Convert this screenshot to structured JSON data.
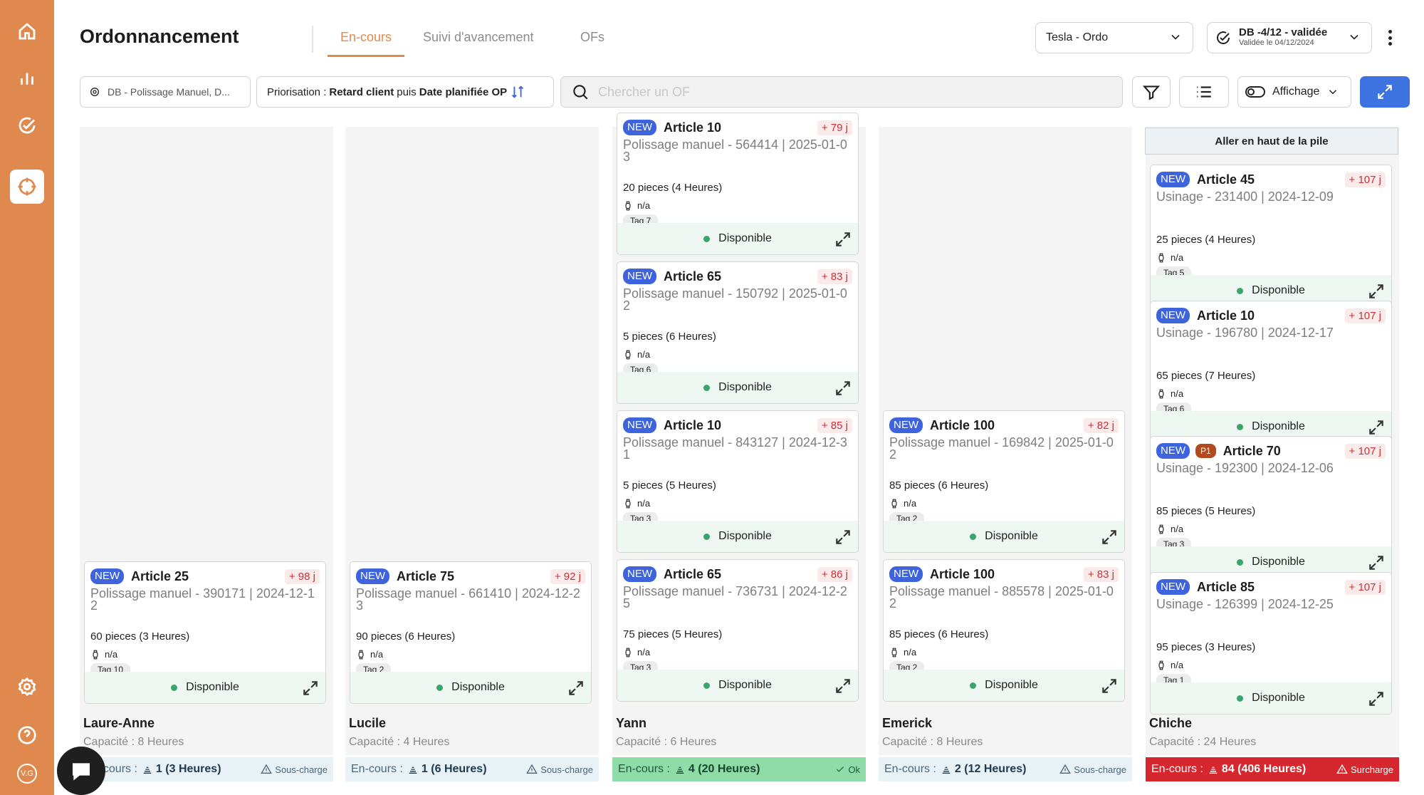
{
  "sidebar": {
    "avatar": "V.G"
  },
  "header": {
    "title": "Ordonnancement",
    "tabs": [
      "En-cours",
      "Suivi d'avancement",
      "OFs"
    ],
    "line_select": "Tesla - Ordo",
    "db_title": "DB -4/12 - validée",
    "db_subtitle": "Validée le 04/12/2024"
  },
  "toolbar": {
    "filter_chip": "DB - Polissage Manuel, D...",
    "prio_label": "Priorisation :",
    "prio_a": "Retard client",
    "prio_join": "puis",
    "prio_b": "Date planifiée OP",
    "search_placeholder": "Chercher un OF",
    "display_label": "Affichage"
  },
  "common": {
    "na": "n/a",
    "available": "Disponible",
    "encours": "En-cours :",
    "goto_top": "Aller en haut de la pile"
  },
  "columns": [
    {
      "name": "Laure-Anne",
      "capacity": "Capacité : 8 Heures",
      "count": "1 (3 Heures)",
      "status": "Sous-charge",
      "tone": "under",
      "cards": [
        {
          "new": "NEW",
          "p1": "",
          "article": "Article 25",
          "delay": "+ 98 j",
          "op": "Polissage manuel - 390171 | 2024-12-12",
          "pieces": "60 pieces (3 Heures)",
          "tag": "Tag 10"
        }
      ]
    },
    {
      "name": "Lucile",
      "capacity": "Capacité : 4 Heures",
      "count": "1 (6 Heures)",
      "status": "Sous-charge",
      "tone": "under",
      "cards": [
        {
          "new": "NEW",
          "p1": "",
          "article": "Article 75",
          "delay": "+ 92 j",
          "op": "Polissage manuel - 661410 | 2024-12-23",
          "pieces": "90 pieces (6 Heures)",
          "tag": "Tag 2"
        }
      ]
    },
    {
      "name": "Yann",
      "capacity": "Capacité : 6 Heures",
      "count": "4 (20 Heures)",
      "status": "Ok",
      "tone": "ok",
      "cards": [
        {
          "new": "NEW",
          "p1": "",
          "article": "Article 10",
          "delay": "+ 79 j",
          "op": "Polissage manuel - 564414 | 2025-01-03",
          "pieces": "20 pieces (4 Heures)",
          "tag": "Tag 7"
        },
        {
          "new": "NEW",
          "p1": "",
          "article": "Article 65",
          "delay": "+ 83 j",
          "op": "Polissage manuel - 150792 | 2025-01-02",
          "pieces": "5 pieces (6 Heures)",
          "tag": "Tag 6"
        },
        {
          "new": "NEW",
          "p1": "",
          "article": "Article 10",
          "delay": "+ 85 j",
          "op": "Polissage manuel - 843127 | 2024-12-31",
          "pieces": "5 pieces (5 Heures)",
          "tag": "Tag 3"
        },
        {
          "new": "NEW",
          "p1": "",
          "article": "Article 65",
          "delay": "+ 86 j",
          "op": "Polissage manuel - 736731 | 2024-12-25",
          "pieces": "75 pieces (5 Heures)",
          "tag": "Tag 3"
        }
      ]
    },
    {
      "name": "Emerick",
      "capacity": "Capacité : 8 Heures",
      "count": "2 (12 Heures)",
      "status": "Sous-charge",
      "tone": "under",
      "cards": [
        {
          "new": "NEW",
          "p1": "",
          "article": "Article 100",
          "delay": "+ 82 j",
          "op": "Polissage manuel - 169842 | 2025-01-02",
          "pieces": "85 pieces (6 Heures)",
          "tag": "Tag 2"
        },
        {
          "new": "NEW",
          "p1": "",
          "article": "Article 100",
          "delay": "+ 83 j",
          "op": "Polissage manuel - 885578 | 2025-01-02",
          "pieces": "85 pieces (6 Heures)",
          "tag": "Tag 2"
        }
      ]
    },
    {
      "name": "Chiche",
      "capacity": "Capacité : 24 Heures",
      "count": "84 (406 Heures)",
      "status": "Surcharge",
      "tone": "over",
      "cards": [
        {
          "new": "NEW",
          "p1": "",
          "article": "Article 45",
          "delay": "+ 107 j",
          "op": "Usinage - 231400 | 2024-12-09",
          "pieces": "25 pieces (4 Heures)",
          "tag": "Tag 5"
        },
        {
          "new": "NEW",
          "p1": "",
          "article": "Article 10",
          "delay": "+ 107 j",
          "op": "Usinage - 196780 | 2024-12-17",
          "pieces": "65 pieces (7 Heures)",
          "tag": "Tag 6"
        },
        {
          "new": "NEW",
          "p1": "P1",
          "article": "Article 70",
          "delay": "+ 107 j",
          "op": "Usinage - 192300 | 2024-12-06",
          "pieces": "85 pieces (5 Heures)",
          "tag": "Tag 3"
        },
        {
          "new": "NEW",
          "p1": "",
          "article": "Article 85",
          "delay": "+ 107 j",
          "op": "Usinage - 126399 | 2024-12-25",
          "pieces": "95 pieces (3 Heures)",
          "tag": "Tag 1"
        }
      ]
    }
  ]
}
